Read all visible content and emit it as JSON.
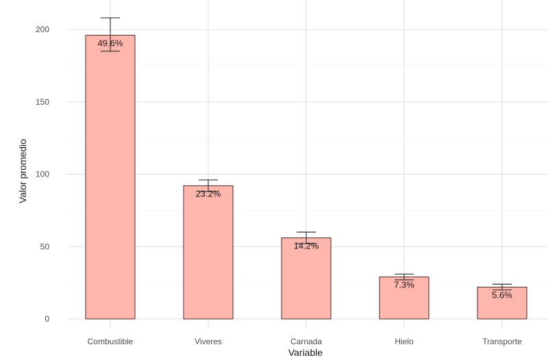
{
  "chart_data": {
    "type": "bar",
    "categories": [
      "Combustible",
      "Viveres",
      "Carnada",
      "Hielo",
      "Transporte"
    ],
    "values": [
      196,
      92,
      56,
      29,
      22
    ],
    "error_low": [
      185,
      88,
      52,
      27,
      20
    ],
    "error_high": [
      208,
      96,
      60,
      31,
      24
    ],
    "labels": [
      "49.6%",
      "23.2%",
      "14.2%",
      "7.3%",
      "5.6%"
    ],
    "title": "",
    "xlabel": "Variable",
    "ylabel": "Valor promedio",
    "ylim": [
      0,
      200
    ],
    "yticks": [
      0,
      50,
      100,
      150,
      200
    ],
    "bar_color": "#ffb6ad",
    "grid": true
  }
}
